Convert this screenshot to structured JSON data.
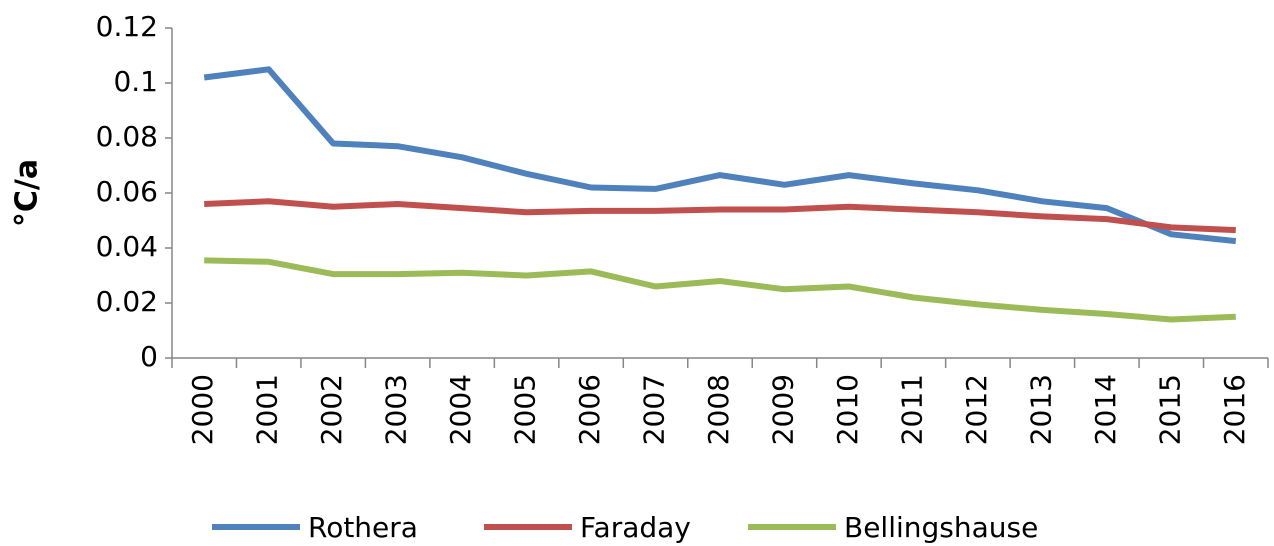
{
  "chart_data": {
    "type": "line",
    "y_label": "°C/a",
    "categories": [
      "2000",
      "2001",
      "2002",
      "2003",
      "2004",
      "2005",
      "2006",
      "2007",
      "2008",
      "2009",
      "2010",
      "2011",
      "2012",
      "2013",
      "2014",
      "2015",
      "2016"
    ],
    "series": [
      {
        "name": "Rothera",
        "color": "#4f81bd",
        "values": [
          0.102,
          0.105,
          0.078,
          0.077,
          0.073,
          0.067,
          0.062,
          0.0615,
          0.0665,
          0.063,
          0.0665,
          0.0635,
          0.061,
          0.057,
          0.0545,
          0.045,
          0.0425
        ]
      },
      {
        "name": "Faraday",
        "color": "#c0504d",
        "values": [
          0.056,
          0.057,
          0.055,
          0.056,
          0.0545,
          0.053,
          0.0535,
          0.0535,
          0.054,
          0.054,
          0.055,
          0.054,
          0.053,
          0.0515,
          0.0505,
          0.0475,
          0.0465
        ]
      },
      {
        "name": "Bellingshause",
        "color": "#9bbb59",
        "values": [
          0.0355,
          0.035,
          0.0305,
          0.0305,
          0.031,
          0.03,
          0.0315,
          0.026,
          0.028,
          0.025,
          0.026,
          0.022,
          0.0195,
          0.0175,
          0.016,
          0.014,
          0.015
        ]
      }
    ],
    "ylim": [
      0,
      0.12
    ],
    "yticks": [
      0,
      0.02,
      0.04,
      0.06,
      0.08,
      0.1,
      0.12
    ],
    "grid": false,
    "legend": "bottom"
  }
}
